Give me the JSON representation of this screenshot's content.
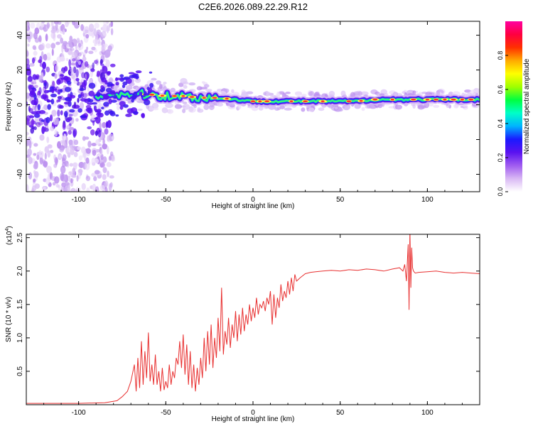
{
  "title": "C2E6.2026.089.22.29.R12",
  "chart_data": [
    {
      "type": "heatmap",
      "name": "spectrogram",
      "xlabel": "Height of straight line (km)",
      "ylabel": "Frequency (Hz)",
      "xlim": [
        -130,
        130
      ],
      "ylim": [
        -50,
        48
      ],
      "xticks": [
        -100,
        -50,
        0,
        50,
        100
      ],
      "yticks": [
        -40,
        -20,
        0,
        20,
        40
      ],
      "colorbar": {
        "label": "Normalized spectral amplitude",
        "range": [
          0,
          1
        ],
        "ticks": [
          0.0,
          0.2,
          0.4,
          0.6,
          0.8
        ],
        "colors": [
          "#ffffff",
          "#d9b8f4",
          "#a05cf0",
          "#5a12f0",
          "#1a1aff",
          "#00b4ff",
          "#00ffc8",
          "#00ff40",
          "#a0ff00",
          "#ffff00",
          "#ffaa00",
          "#ff3000",
          "#ff0040",
          "#ff00a0"
        ]
      },
      "ridge": {
        "x": [
          -125,
          -110,
          -100,
          -90,
          -80,
          -70,
          -60,
          -50,
          -40,
          -30,
          -20,
          -10,
          0,
          10,
          20,
          30,
          40,
          50,
          60,
          70,
          80,
          90,
          100,
          110,
          120,
          130
        ],
        "frequency": [
          3,
          4,
          4,
          5,
          6,
          6,
          6,
          5,
          5,
          4,
          4,
          3,
          2,
          2,
          2,
          2,
          2,
          2,
          2,
          3,
          3,
          3,
          3,
          3,
          3,
          3
        ]
      }
    },
    {
      "type": "line",
      "name": "snr",
      "xlabel": "Height of straight line (km)",
      "ylabel": "SNR (10 * v/v)",
      "multiplier": "(x10",
      "multiplier_exp": "4",
      "multiplier_close": ")",
      "xlim": [
        -130,
        130
      ],
      "ylim": [
        0,
        2.55
      ],
      "xticks": [
        -100,
        -50,
        0,
        50,
        100
      ],
      "yticks": [
        0.5,
        1.0,
        1.5,
        2.0,
        2.5
      ],
      "series": [
        {
          "name": "SNR",
          "color": "#e83030",
          "x": [
            -130,
            -100,
            -85,
            -78,
            -75,
            -72,
            -70,
            -68,
            -67,
            -66,
            -65,
            -64,
            -63,
            -62,
            -61,
            -60,
            -59,
            -58,
            -57,
            -56,
            -55,
            -54,
            -53,
            -52,
            -51,
            -50,
            -49,
            -48,
            -47,
            -46,
            -45,
            -44,
            -43,
            -42,
            -41,
            -40,
            -39,
            -38,
            -37,
            -36,
            -35,
            -34,
            -33,
            -32,
            -31,
            -30,
            -29,
            -28,
            -27,
            -26,
            -25,
            -24,
            -23,
            -22,
            -21,
            -20,
            -19,
            -18,
            -17,
            -16,
            -15,
            -14,
            -13,
            -12,
            -11,
            -10,
            -9,
            -8,
            -7,
            -6,
            -5,
            -4,
            -3,
            -2,
            -1,
            0,
            1,
            2,
            3,
            4,
            5,
            6,
            7,
            8,
            9,
            10,
            11,
            12,
            13,
            14,
            15,
            16,
            17,
            18,
            19,
            20,
            21,
            22,
            23,
            24,
            25,
            27,
            30,
            33,
            36,
            40,
            45,
            50,
            55,
            60,
            65,
            70,
            75,
            80,
            84,
            86,
            87,
            88,
            89,
            89.5,
            90,
            90.5,
            91,
            91.5,
            92,
            93,
            95,
            100,
            105,
            110,
            115,
            120,
            125,
            130
          ],
          "values": [
            0.02,
            0.02,
            0.03,
            0.06,
            0.12,
            0.2,
            0.35,
            0.6,
            0.2,
            0.7,
            0.25,
            0.95,
            0.3,
            0.8,
            0.4,
            1.08,
            0.35,
            0.6,
            0.3,
            0.75,
            0.3,
            0.5,
            0.2,
            0.55,
            0.22,
            0.35,
            0.25,
            0.6,
            0.3,
            0.5,
            0.4,
            0.7,
            0.6,
            0.95,
            0.55,
            1.05,
            0.45,
            0.9,
            0.3,
            0.8,
            0.25,
            0.6,
            0.2,
            0.55,
            0.3,
            0.7,
            0.4,
            1.0,
            0.5,
            1.1,
            0.6,
            1.2,
            0.55,
            1.0,
            0.7,
            1.3,
            0.8,
            1.75,
            0.75,
            1.1,
            0.9,
            1.3,
            0.85,
            1.2,
            1.0,
            1.4,
            0.95,
            1.35,
            1.05,
            1.45,
            1.1,
            1.35,
            1.2,
            1.5,
            1.25,
            1.45,
            1.3,
            1.6,
            1.35,
            1.5,
            1.45,
            1.55,
            1.4,
            1.6,
            1.5,
            1.7,
            1.2,
            1.65,
            1.3,
            1.6,
            1.45,
            1.8,
            1.55,
            1.7,
            1.6,
            1.85,
            1.65,
            1.9,
            1.7,
            1.95,
            1.85,
            1.9,
            1.96,
            1.98,
            1.99,
            2.0,
            2.01,
            2.0,
            2.02,
            2.01,
            2.03,
            2.02,
            2.0,
            2.03,
            2.05,
            2.0,
            2.1,
            1.85,
            2.4,
            1.42,
            2.62,
            1.75,
            2.35,
            2.05,
            2.0,
            1.97,
            1.98,
            1.99,
            2.0,
            1.98,
            1.97,
            1.98,
            1.97,
            1.96
          ]
        }
      ]
    }
  ]
}
